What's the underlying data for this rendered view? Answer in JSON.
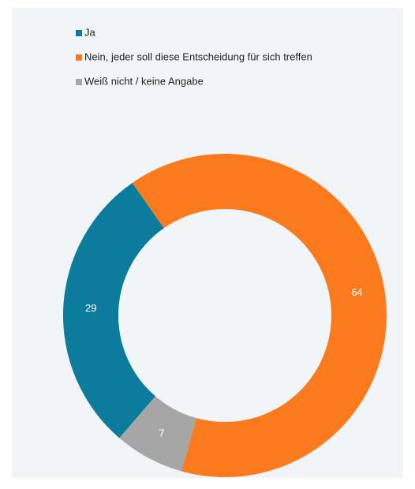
{
  "chart_data": {
    "type": "donut",
    "categories": [
      "Ja",
      "Nein, jeder soll diese Entscheidung für sich treffen",
      "Weiß nicht / keine Angabe"
    ],
    "values": [
      29,
      64,
      7
    ],
    "colors": [
      "#0c7c9c",
      "#fa7a1d",
      "#a6a6a6"
    ]
  }
}
